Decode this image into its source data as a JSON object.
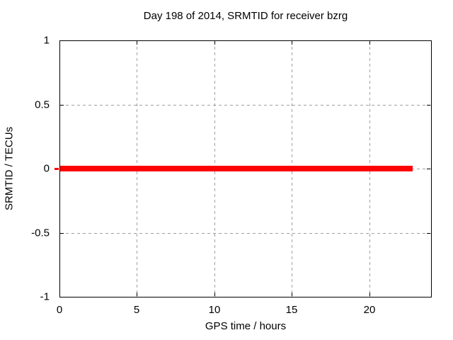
{
  "chart_data": {
    "type": "line",
    "title": "Day 198 of 2014, SRMTID for receiver bzrg",
    "xlabel": "GPS time / hours",
    "ylabel": "SRMTID / TECUs",
    "xlim": [
      0,
      24
    ],
    "ylim": [
      -1,
      1
    ],
    "x_ticks": [
      0,
      5,
      10,
      15,
      20
    ],
    "x_tick_labels": [
      "0",
      "5",
      "10",
      "15",
      "20"
    ],
    "y_ticks": [
      -1,
      -0.5,
      0,
      0.5,
      1
    ],
    "y_tick_labels": [
      "-1",
      "-0.5",
      "0",
      "0.5",
      "1"
    ],
    "grid": true,
    "legend": "none",
    "colors": {
      "series": "#ff0000",
      "grid": "#a0a0a0",
      "border": "#000000",
      "background": "#ffffff",
      "text": "#000000"
    },
    "series": [
      {
        "name": "SRMTID",
        "shape": "horizontal-segment",
        "y": 0,
        "x_start": 0,
        "x_end": 22.8,
        "color": "#ff0000"
      }
    ]
  }
}
